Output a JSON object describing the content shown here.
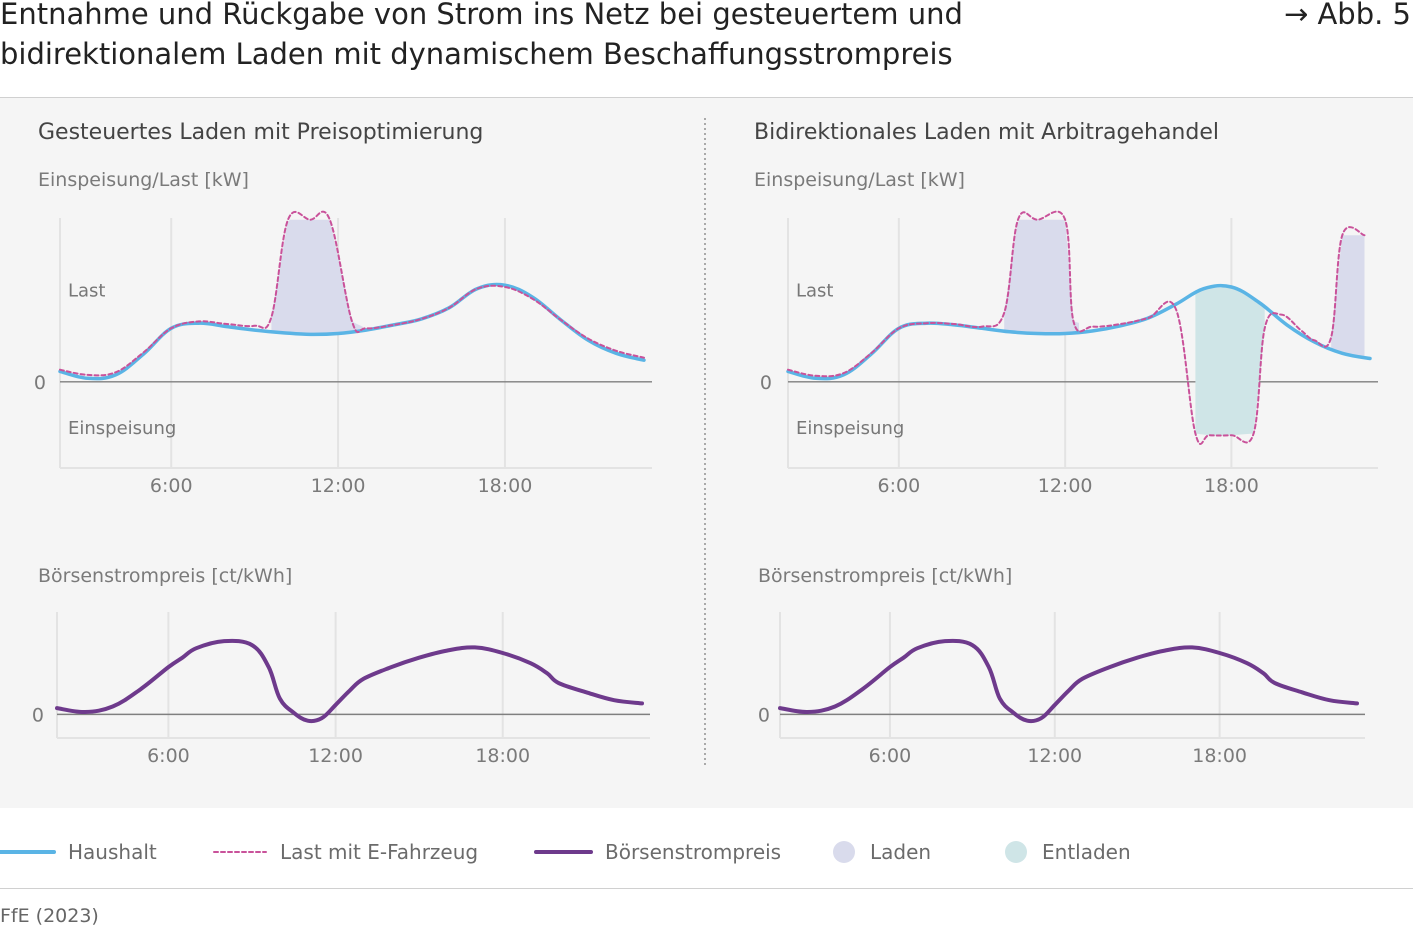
{
  "title_line1": "Entnahme und Rückgabe von Strom ins Netz bei gesteuertem und",
  "title_line2": "bidirektionalem Laden mit dynamischem Beschaffungsstrompreis",
  "figure_ref": "→ Abb. 5",
  "source": "FfE (2023)",
  "colors": {
    "haushalt": "#5ab4e5",
    "last_ev": "#c9529a",
    "boersenstrompreis": "#6e3a8c",
    "laden": "#d9dbec",
    "entladen": "#cfe5e7",
    "axis": "#7f7f7f",
    "grid": "#e3e3e3"
  },
  "legend": [
    {
      "key": "haushalt",
      "label": "Haushalt",
      "style": "solid-line",
      "color": "#5ab4e5"
    },
    {
      "key": "last_ev",
      "label": "Last mit E-Fahrzeug",
      "style": "dashed-line",
      "color": "#c9529a"
    },
    {
      "key": "boersenstrompreis",
      "label": "Börsenstrompreis",
      "style": "solid-line",
      "color": "#6e3a8c"
    },
    {
      "key": "laden",
      "label": "Laden",
      "style": "dot",
      "color": "#d9dbec"
    },
    {
      "key": "entladen",
      "label": "Entladen",
      "style": "dot",
      "color": "#cfe5e7"
    }
  ],
  "panels": [
    {
      "title": "Gesteuertes Laden mit Preisoptimierung"
    },
    {
      "title": "Bidirektionales Laden mit Arbitragehandel"
    }
  ],
  "chart_data": [
    {
      "type": "line",
      "panel": "Gesteuertes Laden mit Preisoptimierung",
      "ylabel": "Einspeisung/Last [kW]",
      "x_ticks": [
        "6:00",
        "12:00",
        "18:00"
      ],
      "xlim": [
        2,
        23
      ],
      "ylim": [
        -1.0,
        1.9
      ],
      "annotations": [
        "Last",
        "Einspeisung"
      ],
      "zero_label": "0",
      "series": [
        {
          "key": "haushalt",
          "x": [
            2,
            3,
            4,
            5,
            6,
            7,
            8,
            9,
            10,
            11,
            12,
            13,
            14,
            15,
            16,
            17,
            18,
            19,
            20,
            21,
            22,
            23
          ],
          "values": [
            0.12,
            0.04,
            0.08,
            0.32,
            0.62,
            0.68,
            0.64,
            0.6,
            0.57,
            0.55,
            0.56,
            0.6,
            0.66,
            0.73,
            0.86,
            1.08,
            1.12,
            0.98,
            0.72,
            0.48,
            0.33,
            0.25
          ]
        },
        {
          "key": "last_ev",
          "x": [
            2,
            3,
            4,
            5,
            6,
            7,
            8,
            9,
            9.6,
            10.2,
            11,
            11.7,
            12.5,
            13,
            14,
            15,
            16,
            17,
            18,
            19,
            20,
            21,
            22,
            23
          ],
          "values": [
            0.14,
            0.08,
            0.11,
            0.34,
            0.62,
            0.7,
            0.67,
            0.65,
            0.75,
            1.88,
            1.88,
            1.88,
            0.7,
            0.62,
            0.66,
            0.73,
            0.86,
            1.08,
            1.1,
            0.96,
            0.72,
            0.5,
            0.36,
            0.28
          ]
        }
      ],
      "fills": [
        {
          "key": "laden",
          "x_range": [
            9.6,
            12.9
          ]
        }
      ]
    },
    {
      "type": "line",
      "panel": "Bidirektionales Laden mit Arbitragehandel",
      "ylabel": "Einspeisung/Last [kW]",
      "x_ticks": [
        "6:00",
        "12:00",
        "18:00"
      ],
      "xlim": [
        2,
        23
      ],
      "ylim": [
        -1.0,
        1.9
      ],
      "annotations": [
        "Last",
        "Einspeisung"
      ],
      "zero_label": "0",
      "series": [
        {
          "key": "haushalt",
          "x": [
            2,
            3,
            4,
            5,
            6,
            7,
            8,
            9,
            10,
            11,
            12,
            13,
            14,
            15,
            16,
            17,
            18,
            19,
            20,
            21,
            22,
            23
          ],
          "values": [
            0.12,
            0.04,
            0.08,
            0.32,
            0.62,
            0.68,
            0.66,
            0.62,
            0.58,
            0.56,
            0.56,
            0.59,
            0.65,
            0.74,
            0.9,
            1.08,
            1.1,
            0.92,
            0.66,
            0.46,
            0.33,
            0.27
          ]
        },
        {
          "key": "last_ev",
          "x": [
            2,
            3,
            4,
            5,
            6,
            7,
            8,
            9,
            9.8,
            10.3,
            11,
            12,
            12.3,
            13,
            14,
            15,
            16,
            16.7,
            17.2,
            18,
            18.8,
            19.2,
            19.8,
            20.5,
            21,
            21.6,
            22,
            22.8
          ],
          "values": [
            0.14,
            0.07,
            0.1,
            0.33,
            0.62,
            0.68,
            0.67,
            0.64,
            0.8,
            1.88,
            1.88,
            1.88,
            0.7,
            0.64,
            0.67,
            0.74,
            0.84,
            -0.6,
            -0.62,
            -0.62,
            -0.6,
            0.62,
            0.78,
            0.6,
            0.48,
            0.52,
            1.7,
            1.7
          ]
        }
      ],
      "fills": [
        {
          "key": "laden",
          "x_range": [
            9.8,
            12.5
          ]
        },
        {
          "key": "entladen",
          "x_range": [
            16.7,
            19.2
          ]
        },
        {
          "key": "laden",
          "x_range": [
            21.6,
            22.8
          ]
        }
      ]
    },
    {
      "type": "line",
      "panel": "Gesteuertes Laden mit Preisoptimierung",
      "ylabel": "Börsenstrompreis [ct/kWh]",
      "x_ticks": [
        "6:00",
        "12:00",
        "18:00"
      ],
      "xlim": [
        2,
        23
      ],
      "ylim": [
        -0.3,
        1.3
      ],
      "zero_label": "0",
      "series": [
        {
          "key": "boersenstrompreis",
          "x": [
            2,
            3,
            4,
            5,
            6,
            6.5,
            7,
            8,
            9,
            9.6,
            10,
            10.5,
            11,
            11.5,
            12,
            12.5,
            13,
            14,
            15,
            16,
            17,
            18,
            19,
            19.6,
            20,
            21,
            22,
            23
          ],
          "values": [
            0.08,
            0.03,
            0.1,
            0.32,
            0.6,
            0.72,
            0.84,
            0.93,
            0.88,
            0.6,
            0.2,
            0.02,
            -0.08,
            -0.05,
            0.12,
            0.3,
            0.45,
            0.6,
            0.72,
            0.81,
            0.85,
            0.78,
            0.65,
            0.52,
            0.4,
            0.28,
            0.18,
            0.14
          ]
        }
      ]
    },
    {
      "type": "line",
      "panel": "Bidirektionales Laden mit Arbitragehandel",
      "ylabel": "Börsenstrompreis [ct/kWh]",
      "x_ticks": [
        "6:00",
        "12:00",
        "18:00"
      ],
      "xlim": [
        2,
        23
      ],
      "ylim": [
        -0.3,
        1.3
      ],
      "zero_label": "0",
      "series": [
        {
          "key": "boersenstrompreis",
          "x": [
            2,
            3,
            4,
            5,
            6,
            6.5,
            7,
            8,
            9,
            9.6,
            10,
            10.5,
            11,
            11.5,
            12,
            12.5,
            13,
            14,
            15,
            16,
            17,
            18,
            19,
            19.6,
            20,
            21,
            22,
            23
          ],
          "values": [
            0.08,
            0.03,
            0.1,
            0.32,
            0.6,
            0.72,
            0.84,
            0.93,
            0.88,
            0.6,
            0.2,
            0.02,
            -0.08,
            -0.05,
            0.12,
            0.3,
            0.45,
            0.6,
            0.72,
            0.81,
            0.85,
            0.78,
            0.65,
            0.52,
            0.4,
            0.28,
            0.18,
            0.14
          ]
        }
      ]
    }
  ]
}
